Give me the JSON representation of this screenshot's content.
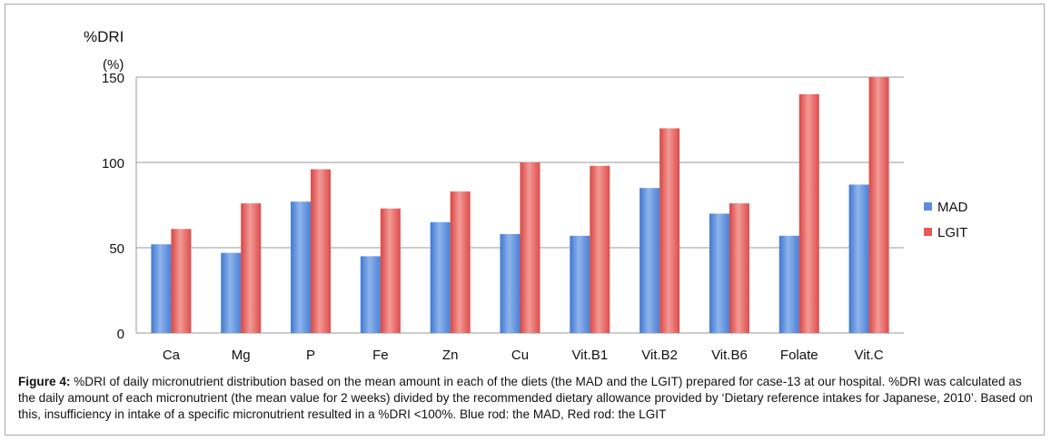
{
  "chart_data": {
    "type": "bar",
    "ylabel": "%DRI",
    "yunit": "(%)",
    "ylim": [
      0,
      150
    ],
    "yticks": [
      0,
      50,
      100,
      150
    ],
    "grid": true,
    "legend_position": "right",
    "categories": [
      "Ca",
      "Mg",
      "P",
      "Fe",
      "Zn",
      "Cu",
      "Vit.B1",
      "Vit.B2",
      "Vit.B6",
      "Folate",
      "Vit.C"
    ],
    "series": [
      {
        "name": "MAD",
        "color": "#5b8fdc",
        "values": [
          52,
          47,
          77,
          45,
          65,
          58,
          57,
          85,
          70,
          57,
          87
        ]
      },
      {
        "name": "LGIT",
        "color": "#e55a58",
        "values": [
          61,
          76,
          96,
          73,
          83,
          100,
          98,
          120,
          76,
          140,
          150
        ]
      }
    ]
  },
  "caption": {
    "label": "Figure 4:",
    "text": " %DRI of daily micronutrient distribution based on the mean amount in each of the diets (the MAD and the LGIT) prepared for case-13 at our hospital. %DRI was calculated as the daily amount of each micronutrient (the mean value for 2 weeks) divided by the recommended dietary allowance provided by ‘Dietary reference intakes for Japanese, 2010’. Based on this, insufficiency in intake of a specific micronutrient resulted in a %DRI <100%. Blue rod: the MAD, Red rod: the LGIT"
  }
}
